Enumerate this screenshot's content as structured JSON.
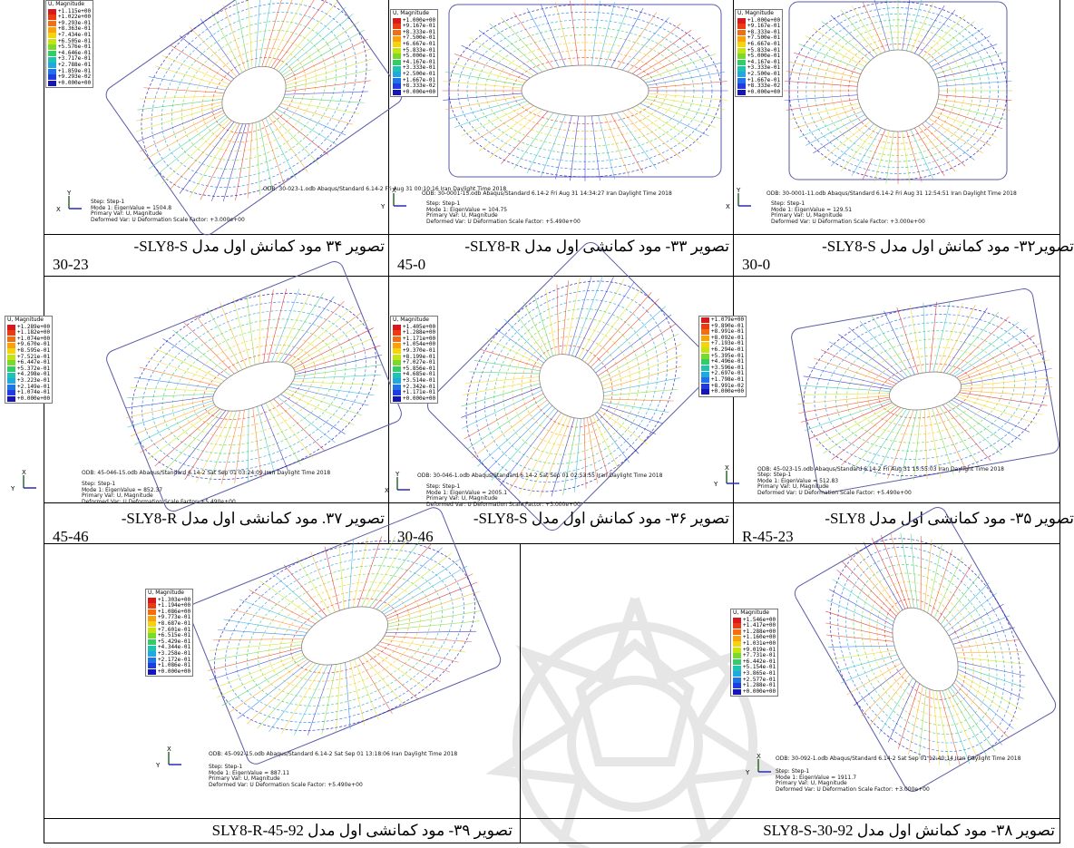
{
  "figures": [
    {
      "id": "fig34",
      "legend_title": "U, Magnitude",
      "legend": [
        "+1.115e+00",
        "+1.022e+00",
        "+9.293e-01",
        "+8.363e-01",
        "+7.434e-01",
        "+6.505e-01",
        "+5.576e-01",
        "+4.646e-01",
        "+3.717e-01",
        "+2.788e-01",
        "+1.859e-01",
        "+9.293e-02",
        "+0.000e+00"
      ],
      "odb": "ODB: 30-023-1.odb    Abaqus/Standard 6.14-2    Fri Aug 31 00:10:16 Iran Daylight Time 2018",
      "step": "Step: Step-1",
      "mode": "Mode        1: EigenValue =   1504.8",
      "primary": "Primary Var: U, Magnitude",
      "deformed": "Deformed Var: U   Deformation Scale Factor: +3.000e+00",
      "axis_up": "Y",
      "axis_side": "X",
      "caption_line1": "تصویر ۳۴ مود کمانش اول مدل SLY8-S-",
      "caption_line2": "30-23"
    },
    {
      "id": "fig33",
      "legend_title": "U, Magnitude",
      "legend": [
        "+1.000e+00",
        "+9.167e-01",
        "+8.333e-01",
        "+7.500e-01",
        "+6.667e-01",
        "+5.833e-01",
        "+5.000e-01",
        "+4.167e-01",
        "+3.333e-01",
        "+2.500e-01",
        "+1.667e-01",
        "+8.333e-02",
        "+0.000e+00"
      ],
      "odb": "ODB: 30-0001-15.odb    Abaqus/Standard 6.14-2    Fri Aug 31 14:34:27 Iran Daylight Time 2018",
      "step": "Step: Step-1",
      "mode": "Mode        1: EigenValue =   104.75",
      "primary": "Primary Var: U, Magnitude",
      "deformed": "Deformed Var: U   Deformation Scale Factor: +5.490e+00",
      "axis_up": "X",
      "axis_side": "Y",
      "caption_line1": "تصویر ۳۳- مود کمانشی اول مدل SLY8-R-",
      "caption_line2": "45-0"
    },
    {
      "id": "fig32",
      "legend_title": "U, Magnitude",
      "legend": [
        "+1.000e+00",
        "+9.167e-01",
        "+8.333e-01",
        "+7.500e-01",
        "+6.667e-01",
        "+5.833e-01",
        "+5.000e-01",
        "+4.167e-01",
        "+3.333e-01",
        "+2.500e-01",
        "+1.667e-01",
        "+8.333e-02",
        "+0.000e+00"
      ],
      "odb": "ODB: 30-0001-11.odb    Abaqus/Standard 6.14-2    Fri Aug 31 12:54:51 Iran Daylight Time 2018",
      "step": "Step: Step-1",
      "mode": "Mode        1: EigenValue =   129.51",
      "primary": "Primary Var: U, Magnitude",
      "deformed": "Deformed Var: U   Deformation Scale Factor: +3.000e+00",
      "axis_up": "Y",
      "axis_side": "X",
      "caption_line1": "تصویر۳۲- مود کمانش اول مدل SLY8-S-",
      "caption_line2": "30-0"
    },
    {
      "id": "fig37",
      "legend_title": "U, Magnitude",
      "legend": [
        "+1.289e+00",
        "+1.182e+00",
        "+1.074e+00",
        "+9.670e-01",
        "+8.595e-01",
        "+7.521e-01",
        "+6.447e-01",
        "+5.372e-01",
        "+4.298e-01",
        "+3.223e-01",
        "+2.149e-01",
        "+1.074e-01",
        "+0.000e+00"
      ],
      "odb": "ODB: 45-046-15.odb    Abaqus/Standard 6.14-2    Sat Sep 01 03:24:09 Iran Daylight Time 2018",
      "step": "Step: Step-1",
      "mode": "Mode        1: EigenValue =   852.37",
      "primary": "Primary Var: U, Magnitude",
      "deformed": "Deformed Var: U   Deformation Scale Factor: +5.490e+00",
      "axis_up": "X",
      "axis_side": "Y",
      "caption_line1": "تصویر ۳۷. مود کمانشی اول مدل SLY8-R-",
      "caption_line2": "45-46"
    },
    {
      "id": "fig36",
      "legend_title": "U, Magnitude",
      "legend": [
        "+1.405e+00",
        "+1.288e+00",
        "+1.171e+00",
        "+1.054e+00",
        "+9.370e-01",
        "+8.199e-01",
        "+7.027e-01",
        "+5.856e-01",
        "+4.685e-01",
        "+3.514e-01",
        "+2.342e-01",
        "+1.171e-01",
        "+0.000e+00"
      ],
      "odb": "ODB: 30-046-1.odb    Abaqus/Standard 6.14-2    Sat Sep 01 02:53:55 Iran Daylight Time 2018",
      "step": "Step: Step-1",
      "mode": "Mode        1: EigenValue =   2005.1",
      "primary": "Primary Var: U, Magnitude",
      "deformed": "Deformed Var: U   Deformation Scale Factor: +3.000e+00",
      "axis_up": "Y",
      "axis_side": "X",
      "caption_line1": "تصویر ۳۶- مود کمانش اول مدل SLY8-S-",
      "caption_line2": "30-46"
    },
    {
      "id": "fig35",
      "legend_title": "",
      "legend": [
        "+1.079e+00",
        "+9.890e-01",
        "+8.991e-01",
        "+8.092e-01",
        "+7.193e-01",
        "+6.294e-01",
        "+5.395e-01",
        "+4.496e-01",
        "+3.596e-01",
        "+2.697e-01",
        "+1.798e-01",
        "+8.991e-02",
        "+0.000e+00"
      ],
      "odb": "ODB: 45-023-15.odb    Abaqus/Standard 6.14-2    Fri Aug 31 15:55:03 Iran Daylight Time 2018",
      "step": "Step: Step-1",
      "mode": "Mode        1: EigenValue =   512.83",
      "primary": "Primary Var: U, Magnitude",
      "deformed": "Deformed Var: U   Deformation Scale Factor: +5.490e+00",
      "axis_up": "X",
      "axis_side": "Y",
      "caption_line1": "تصویر ۳۵- مود کمانشی اول مدل SLY8-",
      "caption_line2": "R-45-23"
    },
    {
      "id": "fig39",
      "legend_title": "U, Magnitude",
      "legend": [
        "+1.303e+00",
        "+1.194e+00",
        "+1.086e+00",
        "+9.773e-01",
        "+8.687e-01",
        "+7.601e-01",
        "+6.515e-01",
        "+5.429e-01",
        "+4.344e-01",
        "+3.258e-01",
        "+2.172e-01",
        "+1.086e-01",
        "+0.000e+00"
      ],
      "odb": "ODB: 45-092-15.odb    Abaqus/Standard 6.14-2    Sat Sep 01 13:18:06 Iran Daylight Time 2018",
      "step": "Step: Step-1",
      "mode": "Mode        1: EigenValue =   887.11",
      "primary": "Primary Var: U, Magnitude",
      "deformed": "Deformed Var: U   Deformation Scale Factor: +5.490e+00",
      "axis_up": "X",
      "axis_side": "Y",
      "caption_line1": "تصویر ۳۹- مود کمانشی اول مدل SLY8-R-45-92",
      "caption_line2": ""
    },
    {
      "id": "fig38",
      "legend_title": "U, Magnitude",
      "legend": [
        "+1.546e+00",
        "+1.417e+00",
        "+1.288e+00",
        "+1.160e+00",
        "+1.031e+00",
        "+9.019e-01",
        "+7.731e-01",
        "+6.442e-01",
        "+5.154e-01",
        "+3.865e-01",
        "+2.577e-01",
        "+1.288e-01",
        "+0.000e+00"
      ],
      "odb": "ODB: 30-092-1.odb    Abaqus/Standard 6.14-2    Sat Sep 01 12:40:14 Iran Daylight Time 2018",
      "step": "Step: Step-1",
      "mode": "Mode        1: EigenValue =   1911.7",
      "primary": "Primary Var: U, Magnitude",
      "deformed": "Deformed Var: U   Deformation Scale Factor: +3.000e+00",
      "axis_up": "X",
      "axis_side": "Y",
      "caption_line1": "تصویر ۳۸- مود کمانش اول مدل SLY8-S-30-92",
      "caption_line2": ""
    }
  ],
  "contour_colors": [
    "#d7191c",
    "#ea3b12",
    "#f46d0f",
    "#f8a20f",
    "#f3d40e",
    "#c8e410",
    "#7bd82c",
    "#33cc66",
    "#1fc4b0",
    "#20a8e0",
    "#1f72e8",
    "#1f3ce0",
    "#1515b8"
  ]
}
